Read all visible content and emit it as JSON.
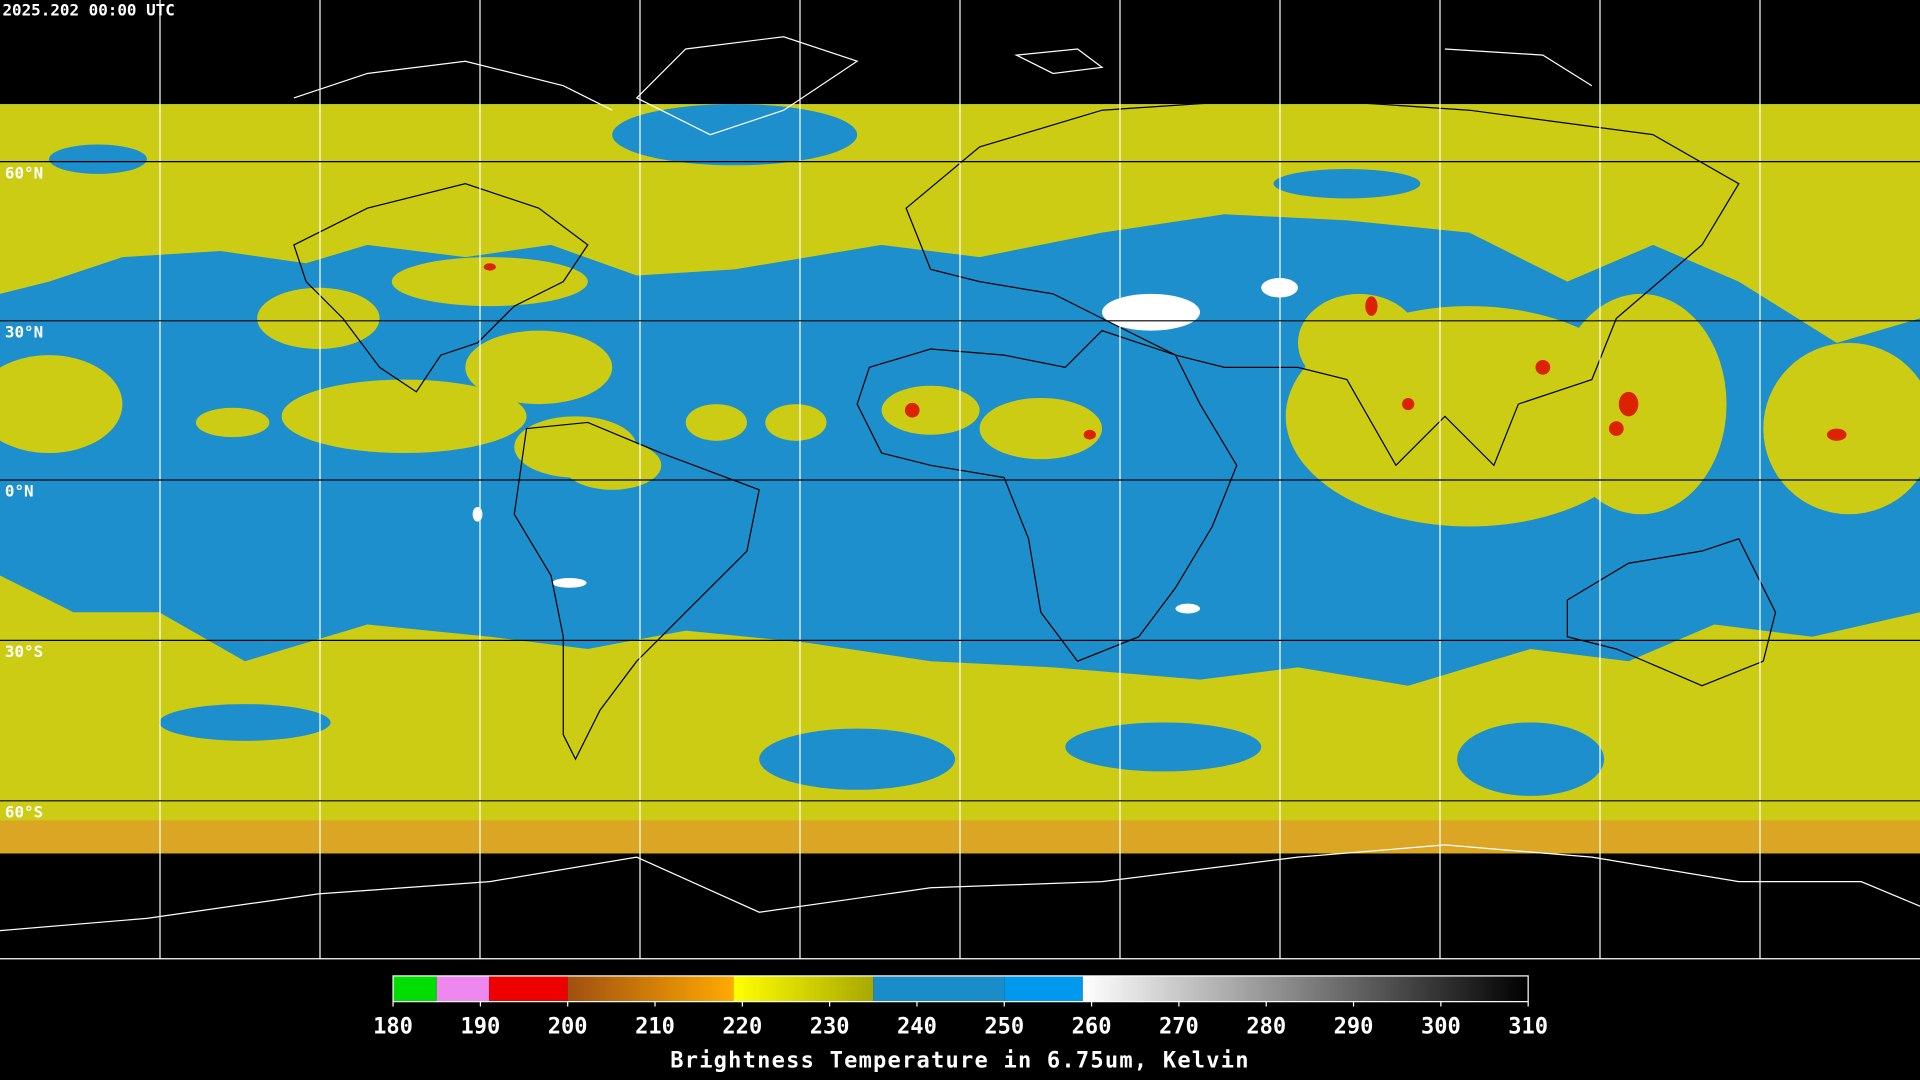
{
  "header": {
    "title": "2025.202 00:00 UTC"
  },
  "map": {
    "lat_labels": [
      "60°N",
      "30°N",
      "0°N",
      "30°S",
      "60°S"
    ]
  },
  "colorbar": {
    "label": "Brightness Temperature in 6.75um, Kelvin",
    "range": [
      180,
      310
    ],
    "ticks": [
      180,
      190,
      200,
      210,
      220,
      230,
      240,
      250,
      260,
      270,
      280,
      290,
      300,
      310
    ],
    "segments": [
      {
        "from": 180,
        "to": 185,
        "colors": [
          "#00dd00",
          "#00dd00"
        ]
      },
      {
        "from": 185,
        "to": 191,
        "colors": [
          "#ee88ee",
          "#ee88ee"
        ]
      },
      {
        "from": 191,
        "to": 200,
        "colors": [
          "#ee0000",
          "#ee0000"
        ]
      },
      {
        "from": 200,
        "to": 219,
        "colors": [
          "#a05010",
          "#ffaa00"
        ]
      },
      {
        "from": 219,
        "to": 235,
        "colors": [
          "#ffff00",
          "#a8a800"
        ]
      },
      {
        "from": 235,
        "to": 250,
        "colors": [
          "#1a8cc8",
          "#1a8cc8"
        ]
      },
      {
        "from": 250,
        "to": 259,
        "colors": [
          "#0099ee",
          "#0099ee"
        ]
      },
      {
        "from": 259,
        "to": 310,
        "colors": [
          "#ffffff",
          "#000000"
        ]
      }
    ]
  }
}
